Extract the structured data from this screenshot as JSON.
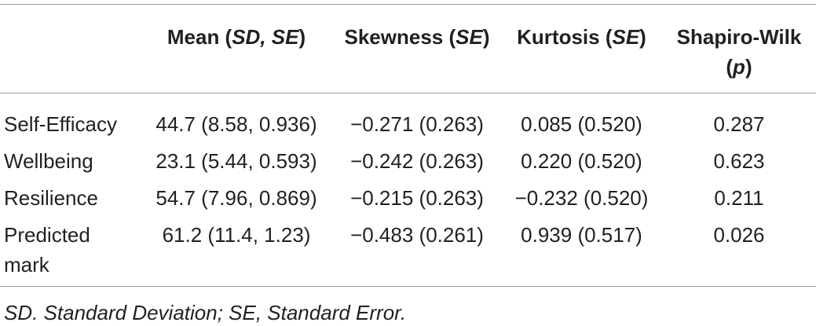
{
  "table": {
    "header": [
      [],
      [
        {
          "text": "Mean (",
          "italic": false
        },
        {
          "text": "SD, SE",
          "italic": true
        },
        {
          "text": ")",
          "italic": false
        }
      ],
      [
        {
          "text": "Skewness (",
          "italic": false
        },
        {
          "text": "SE",
          "italic": true
        },
        {
          "text": ")",
          "italic": false
        }
      ],
      [
        {
          "text": "Kurtosis (",
          "italic": false
        },
        {
          "text": "SE",
          "italic": true
        },
        {
          "text": ")",
          "italic": false
        }
      ],
      [
        {
          "text": "Shapiro-Wilk (",
          "italic": false
        },
        {
          "text": "p",
          "italic": true
        },
        {
          "text": ")",
          "italic": false
        }
      ]
    ],
    "rows": [
      [
        "Self-Efficacy",
        "44.7 (8.58, 0.936)",
        "−0.271 (0.263)",
        "0.085 (0.520)",
        "0.287"
      ],
      [
        "Wellbeing",
        "23.1 (5.44, 0.593)",
        "−0.242 (0.263)",
        "0.220 (0.520)",
        "0.623"
      ],
      [
        "Resilience",
        "54.7 (7.96, 0.869)",
        "−0.215 (0.263)",
        "−0.232 (0.520)",
        "0.211"
      ],
      [
        "Predicted mark",
        "61.2 (11.4, 1.23)",
        "−0.483 (0.261)",
        "0.939 (0.517)",
        "0.026"
      ]
    ],
    "footnote": "SD. Standard Deviation; SE, Standard Error."
  }
}
